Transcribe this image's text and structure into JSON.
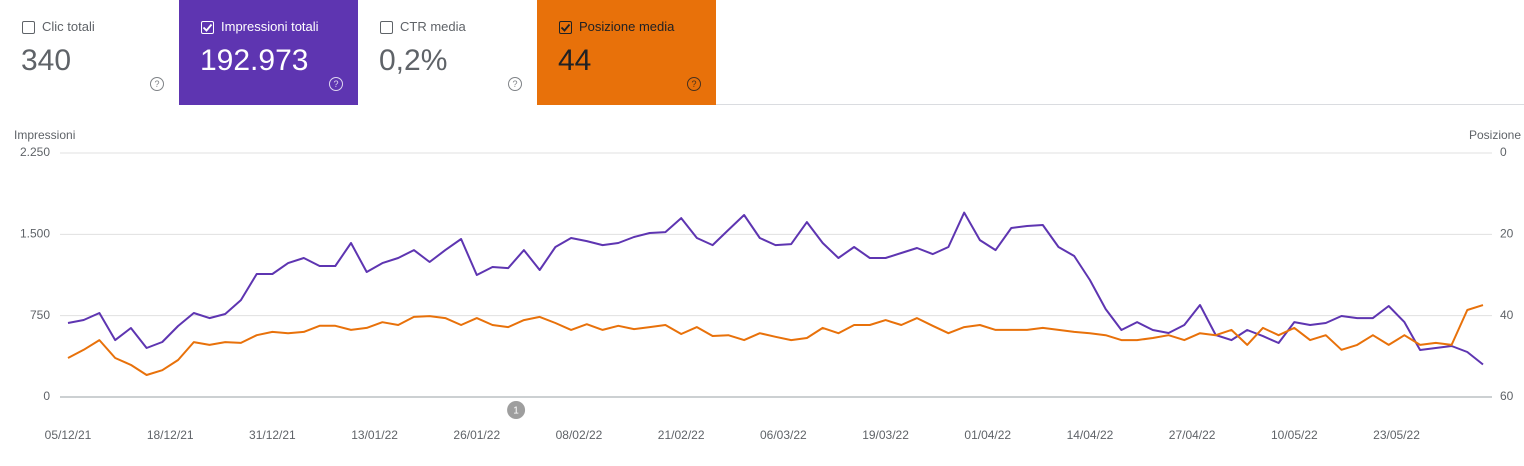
{
  "cards": [
    {
      "label": "Clic totali",
      "value": "340",
      "checked": false,
      "color": "#ffffff",
      "text_color": "#5f6368"
    },
    {
      "label": "Impressioni totali",
      "value": "192.973",
      "checked": true,
      "color": "#5e35b1",
      "text_color": "#ffffff"
    },
    {
      "label": "CTR media",
      "value": "0,2%",
      "checked": false,
      "color": "#ffffff",
      "text_color": "#5f6368"
    },
    {
      "label": "Posizione media",
      "value": "44",
      "checked": true,
      "color": "#e8710a",
      "text_color": "#202124"
    }
  ],
  "chart_data": {
    "type": "line",
    "ylabel": "Impressioni",
    "y2label": "Posizione",
    "x": [
      "05/12/21",
      "07/12/21",
      "09/12/21",
      "11/12/21",
      "13/12/21",
      "15/12/21",
      "17/12/21",
      "19/12/21",
      "21/12/21",
      "23/12/21",
      "25/12/21",
      "27/12/21",
      "29/12/21",
      "31/12/21",
      "02/01/22",
      "04/01/22",
      "06/01/22",
      "08/01/22",
      "10/01/22",
      "12/01/22",
      "14/01/22",
      "16/01/22",
      "18/01/22",
      "20/01/22",
      "22/01/22",
      "24/01/22",
      "26/01/22",
      "28/01/22",
      "30/01/22",
      "01/02/22",
      "03/02/22",
      "05/02/22",
      "07/02/22",
      "09/02/22",
      "11/02/22",
      "13/02/22",
      "15/02/22",
      "17/02/22",
      "19/02/22",
      "21/02/22",
      "23/02/22",
      "25/02/22",
      "27/02/22",
      "01/03/22",
      "03/03/22",
      "05/03/22",
      "07/03/22",
      "09/03/22",
      "11/03/22",
      "13/03/22",
      "15/03/22",
      "17/03/22",
      "19/03/22",
      "21/03/22",
      "23/03/22",
      "25/03/22",
      "27/03/22",
      "29/03/22",
      "31/03/22",
      "02/04/22",
      "04/04/22",
      "06/04/22",
      "08/04/22",
      "10/04/22",
      "12/04/22",
      "14/04/22",
      "16/04/22",
      "18/04/22",
      "20/04/22",
      "22/04/22",
      "24/04/22",
      "26/04/22",
      "28/04/22",
      "30/04/22",
      "02/05/22",
      "04/05/22",
      "06/05/22",
      "08/05/22",
      "10/05/22",
      "12/05/22",
      "14/05/22",
      "16/05/22",
      "18/05/22",
      "20/05/22",
      "22/05/22",
      "24/05/22",
      "26/05/22",
      "28/05/22",
      "30/05/22",
      "01/06/22",
      "03/06/22"
    ],
    "xlim": [
      "05/12/21",
      "03/06/22"
    ],
    "xticks": [
      "05/12/21",
      "18/12/21",
      "31/12/21",
      "13/01/22",
      "26/01/22",
      "08/02/22",
      "21/02/22",
      "06/03/22",
      "19/03/22",
      "01/04/22",
      "14/04/22",
      "27/04/22",
      "10/05/22",
      "23/05/22"
    ],
    "ylim": [
      0,
      2250
    ],
    "yticks": [
      0,
      750,
      {
        "value": 1500,
        "label": "1.500"
      },
      {
        "value": 2250,
        "label": "2.250"
      }
    ],
    "y2lim": [
      0,
      60
    ],
    "y2ticks": [
      0,
      20,
      40,
      60
    ],
    "y2reverse": true,
    "grid": true,
    "series": [
      {
        "name": "Impressioni totali",
        "color": "#5e35b1",
        "axis": "y",
        "values": [
          682,
          710,
          775,
          525,
          636,
          452,
          507,
          655,
          775,
          728,
          765,
          894,
          1134,
          1134,
          1235,
          1282,
          1208,
          1208,
          1420,
          1153,
          1235,
          1282,
          1355,
          1245,
          1355,
          1457,
          1125,
          1199,
          1189,
          1355,
          1171,
          1383,
          1466,
          1438,
          1401,
          1420,
          1475,
          1512,
          1521,
          1650,
          1466,
          1401,
          1540,
          1678,
          1466,
          1401,
          1410,
          1613,
          1420,
          1282,
          1383,
          1282,
          1282,
          1328,
          1374,
          1318,
          1383,
          1700,
          1447,
          1355,
          1558,
          1577,
          1586,
          1383,
          1300,
          1079,
          811,
          618,
          691,
          618,
          590,
          664,
          848,
          572,
          525,
          618,
          562,
          498,
          691,
          664,
          682,
          747,
          728,
          728,
          839,
          691,
          433,
          452,
          470,
          415,
          300
        ]
      },
      {
        "name": "Posizione media",
        "color": "#e8710a",
        "axis": "y2",
        "values": [
          50.4,
          48.4,
          46,
          50.4,
          52.1,
          54.6,
          53.4,
          50.9,
          46.5,
          47.2,
          46.5,
          46.7,
          44.8,
          44,
          44.3,
          44,
          42.5,
          42.5,
          43.5,
          43,
          41.6,
          42.3,
          40.3,
          40.1,
          40.6,
          42.3,
          40.6,
          42.3,
          42.8,
          41.1,
          40.3,
          41.8,
          43.5,
          42.1,
          43.5,
          42.5,
          43.3,
          42.8,
          42.3,
          44.5,
          42.8,
          45,
          44.8,
          46,
          44.3,
          45.2,
          46,
          45.5,
          43,
          44.3,
          42.3,
          42.3,
          41.1,
          42.3,
          40.6,
          42.5,
          44.3,
          42.8,
          42.3,
          43.5,
          43.5,
          43.5,
          43,
          43.5,
          44,
          44.3,
          44.8,
          46,
          46,
          45.5,
          44.8,
          46,
          44.3,
          44.8,
          43.5,
          47.2,
          43,
          44.8,
          43,
          46,
          44.8,
          48.4,
          47.2,
          44.8,
          47.2,
          44.8,
          47.2,
          46.7,
          47.2,
          38.6,
          37.4
        ]
      }
    ],
    "annotations": [
      {
        "text": "1",
        "x": "31/01/22"
      }
    ]
  }
}
